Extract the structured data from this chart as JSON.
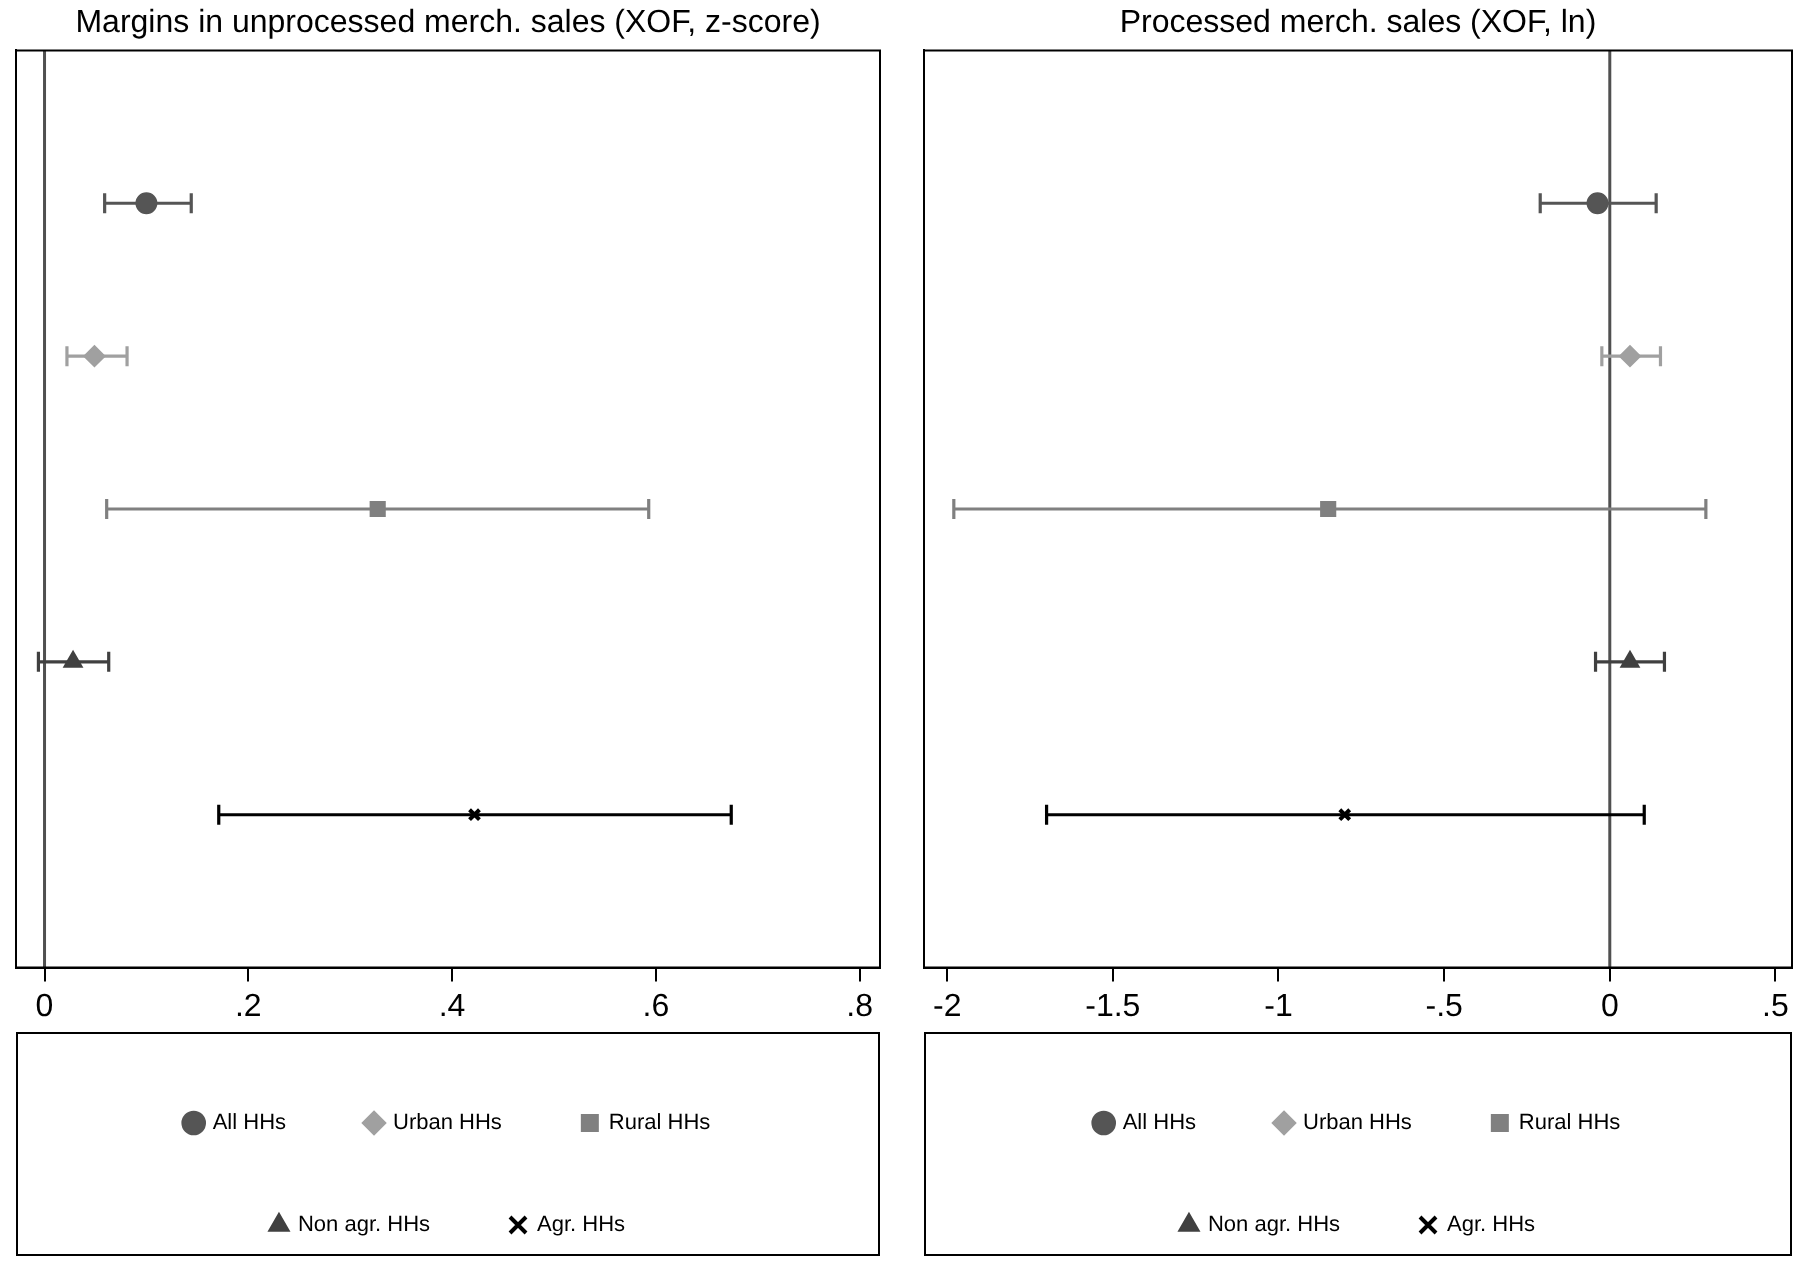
{
  "chart_data": [
    {
      "type": "scatter",
      "title": "Margins in unprocessed merch. sales (XOF, z-score)",
      "orientation": "horizontal",
      "categories": [
        null,
        null,
        null,
        null,
        null
      ],
      "xlim": [
        -0.028,
        0.82
      ],
      "xticks": [
        0,
        {
          "value": 0.2,
          "label": ".2"
        },
        {
          "value": 0.4,
          "label": ".4"
        },
        {
          "value": 0.6,
          "label": ".6"
        },
        {
          "value": 0.8,
          "label": ".8"
        }
      ],
      "tick_labels": "x",
      "grid": false,
      "legend": "bottom",
      "ref_lines": [
        {
          "axis": "x",
          "value": 0,
          "color": "#505050"
        }
      ],
      "series": [
        {
          "name": "All HHs",
          "color": "#555555",
          "marker": "circle",
          "values": [
            0.1,
            null,
            null,
            null,
            null
          ],
          "errors": [
            [
              0.059,
              0.144
            ],
            null,
            null,
            null,
            null
          ]
        },
        {
          "name": "Urban HHs",
          "color": "#a0a0a0",
          "marker": "diamond",
          "values": [
            null,
            0.049,
            null,
            null,
            null
          ],
          "errors": [
            null,
            [
              0.022,
              0.081
            ],
            null,
            null,
            null
          ]
        },
        {
          "name": "Rural HHs",
          "color": "#808080",
          "marker": "square",
          "values": [
            null,
            null,
            0.327,
            null,
            null
          ],
          "errors": [
            null,
            null,
            [
              0.061,
              0.593
            ],
            null,
            null
          ]
        },
        {
          "name": "Non agr. HHs",
          "color": "#404040",
          "marker": "triangle",
          "values": [
            null,
            null,
            null,
            0.028,
            null
          ],
          "errors": [
            null,
            null,
            null,
            [
              -0.006,
              0.063
            ],
            null
          ]
        },
        {
          "name": "Agr. HHs",
          "color": "#000000",
          "marker": "cross",
          "values": [
            null,
            null,
            null,
            null,
            0.422
          ],
          "errors": [
            null,
            null,
            null,
            null,
            [
              0.171,
              0.674
            ]
          ]
        }
      ]
    },
    {
      "type": "scatter",
      "title": "Processed merch. sales (XOF, ln)",
      "orientation": "horizontal",
      "categories": [
        null,
        null,
        null,
        null,
        null
      ],
      "xlim": [
        -2.07,
        0.55
      ],
      "xticks": [
        -2,
        -1.5,
        -1,
        {
          "value": -0.5,
          "label": "-.5"
        },
        0,
        {
          "value": 0.5,
          "label": ".5"
        }
      ],
      "tick_labels": "x",
      "grid": false,
      "legend": "bottom",
      "ref_lines": [
        {
          "axis": "x",
          "value": 0,
          "color": "#505050"
        }
      ],
      "series": [
        {
          "name": "All HHs",
          "color": "#555555",
          "marker": "circle",
          "values": [
            -0.037,
            null,
            null,
            null,
            null
          ],
          "errors": [
            [
              -0.21,
              0.14
            ],
            null,
            null,
            null,
            null
          ]
        },
        {
          "name": "Urban HHs",
          "color": "#a0a0a0",
          "marker": "diamond",
          "values": [
            null,
            0.061,
            null,
            null,
            null
          ],
          "errors": [
            null,
            [
              -0.024,
              0.153
            ],
            null,
            null,
            null
          ]
        },
        {
          "name": "Rural HHs",
          "color": "#808080",
          "marker": "square",
          "values": [
            null,
            null,
            -0.85,
            null,
            null
          ],
          "errors": [
            null,
            null,
            [
              -1.98,
              0.29
            ],
            null,
            null
          ]
        },
        {
          "name": "Non agr. HHs",
          "color": "#404040",
          "marker": "triangle",
          "values": [
            null,
            null,
            null,
            0.061,
            null
          ],
          "errors": [
            null,
            null,
            null,
            [
              -0.043,
              0.165
            ],
            null
          ]
        },
        {
          "name": "Agr. HHs",
          "color": "#000000",
          "marker": "cross",
          "values": [
            null,
            null,
            null,
            null,
            -0.8
          ],
          "errors": [
            null,
            null,
            null,
            null,
            [
              -1.7,
              0.104
            ]
          ]
        }
      ]
    }
  ]
}
